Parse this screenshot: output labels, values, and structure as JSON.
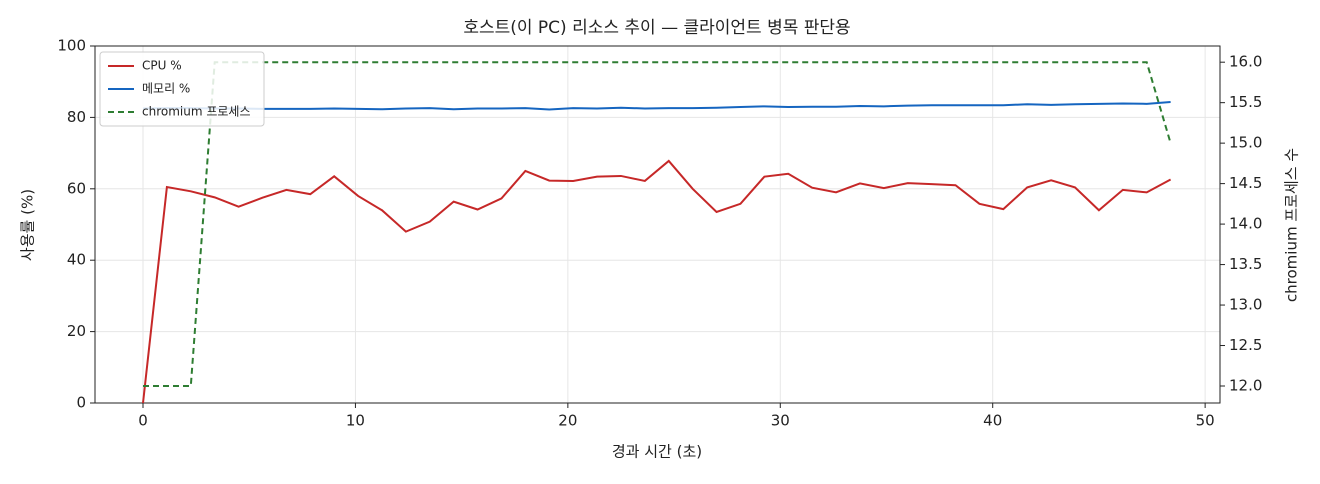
{
  "chart_data": {
    "type": "line",
    "title": "호스트(이 PC) 리소스 추이 — 클라이언트 병목 판단용",
    "x_label": "경과 시간 (초)",
    "y_label": "사용률 (%)",
    "y2_label": "chromium 프로세스 수",
    "x": [
      0,
      1.125,
      2.25,
      3.375,
      4.5,
      5.625,
      6.75,
      7.875,
      9,
      10.125,
      11.25,
      12.375,
      13.5,
      14.625,
      15.75,
      16.875,
      18,
      19.125,
      20.25,
      21.375,
      22.5,
      23.625,
      24.75,
      25.875,
      27,
      28.125,
      29.25,
      30.375,
      31.5,
      32.625,
      33.75,
      34.875,
      36,
      37.125,
      38.25,
      39.375,
      40.5,
      41.625,
      42.75,
      43.875,
      45,
      46.125,
      47.25,
      48.375
    ],
    "series": [
      {
        "name": "CPU %",
        "color": "#c62828",
        "dash": false,
        "values": [
          0,
          60.5,
          59.3,
          57.6,
          55,
          57.5,
          59.7,
          58.5,
          63.5,
          58,
          54,
          48,
          50.8,
          56.4,
          54.2,
          57.3,
          65,
          62.3,
          62.2,
          63.4,
          63.6,
          62.2,
          67.8,
          60,
          53.5,
          55.8,
          63.4,
          64.2,
          60.3,
          59,
          61.5,
          60.2,
          61.6,
          61.3,
          61,
          55.8,
          54.3,
          60.4,
          62.4,
          60.4,
          54,
          59.7,
          59,
          62.6
        ]
      },
      {
        "name": "메모리 %",
        "color": "#1565c0",
        "dash": false,
        "values": [
          82.5,
          82.6,
          82.6,
          82.5,
          82.5,
          82.4,
          82.4,
          82.4,
          82.5,
          82.4,
          82.3,
          82.5,
          82.6,
          82.3,
          82.5,
          82.5,
          82.6,
          82.2,
          82.6,
          82.5,
          82.7,
          82.5,
          82.6,
          82.6,
          82.7,
          82.9,
          83.1,
          82.9,
          83.0,
          83.0,
          83.2,
          83.1,
          83.3,
          83.4,
          83.4,
          83.4,
          83.4,
          83.7,
          83.5,
          83.7,
          83.8,
          83.9,
          83.8,
          84.3
        ]
      },
      {
        "name": "chromium 프로세스",
        "color": "#2e7d32",
        "dash": true,
        "axis": "y2",
        "values": [
          12,
          12,
          12,
          16,
          16,
          16,
          16,
          16,
          16,
          16,
          16,
          16,
          16,
          16,
          16,
          16,
          16,
          16,
          16,
          16,
          16,
          16,
          16,
          16,
          16,
          16,
          16,
          16,
          16,
          16,
          16,
          16,
          16,
          16,
          16,
          16,
          16,
          16,
          16,
          16,
          16,
          16,
          16,
          15
        ]
      }
    ],
    "xlim": [
      -2.26,
      50.7
    ],
    "xticks": [
      0,
      10,
      20,
      30,
      40,
      50
    ],
    "ylim": [
      0,
      100
    ],
    "yticks": [
      0,
      20,
      40,
      60,
      80,
      100
    ],
    "y2lim": [
      11.79,
      16.2
    ],
    "y2ticks": [
      {
        "value": 12,
        "label": "12.0"
      },
      {
        "value": 12.5,
        "label": "12.5"
      },
      {
        "value": 13,
        "label": "13.0"
      },
      {
        "value": 13.5,
        "label": "13.5"
      },
      {
        "value": 14,
        "label": "14.0"
      },
      {
        "value": 14.5,
        "label": "14.5"
      },
      {
        "value": 15,
        "label": "15.0"
      },
      {
        "value": 15.5,
        "label": "15.5"
      },
      {
        "value": 16,
        "label": "16.0"
      }
    ],
    "grid": true,
    "legend": "upper-left"
  }
}
